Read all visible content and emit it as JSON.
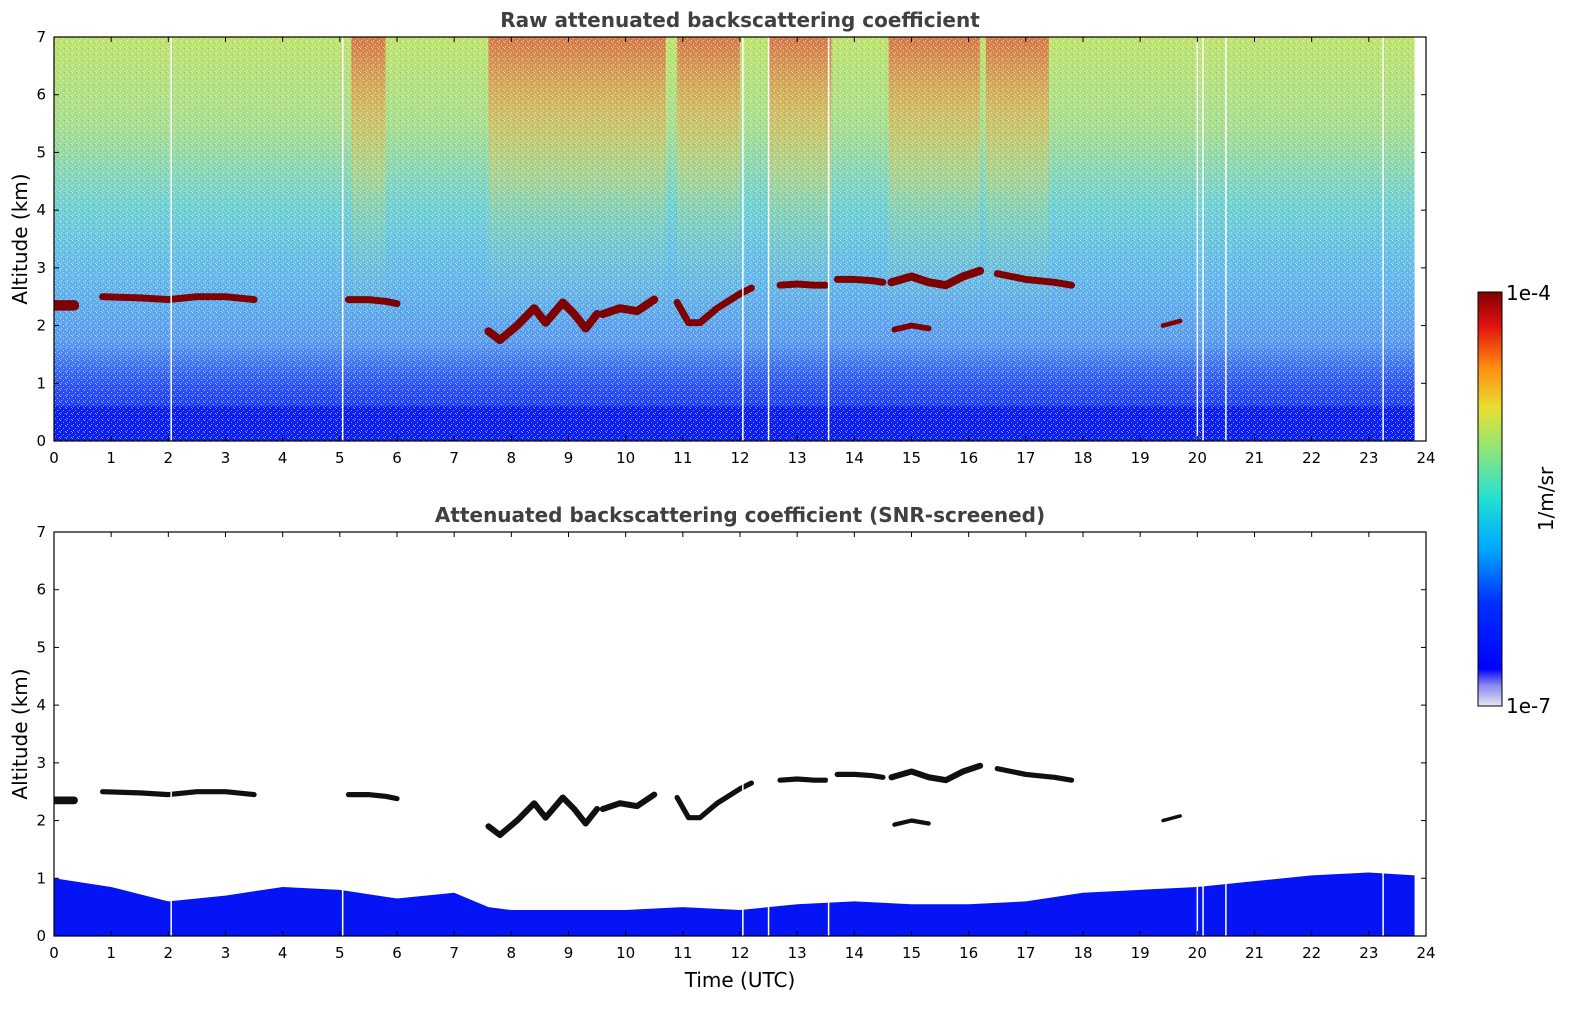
{
  "chart_data": [
    {
      "type": "heatmap",
      "title": "Raw attenuated backscattering coefficient",
      "xlabel": "",
      "ylabel": "Altitude (km)",
      "xlim": [
        0,
        24
      ],
      "ylim": [
        0,
        7
      ],
      "xticks": [
        "0",
        "1",
        "2",
        "3",
        "4",
        "5",
        "6",
        "7",
        "8",
        "9",
        "10",
        "11",
        "12",
        "13",
        "14",
        "15",
        "16",
        "17",
        "18",
        "19",
        "20",
        "21",
        "22",
        "23",
        "24"
      ],
      "yticks": [
        "0",
        "1",
        "2",
        "3",
        "4",
        "5",
        "6",
        "7"
      ],
      "data_end_time": 23.8,
      "surface_layer_top_km": 0.6,
      "noise_strong_intervals_utc": [
        [
          7.6,
          10.7
        ],
        [
          10.9,
          12.0
        ],
        [
          12.5,
          13.6
        ],
        [
          14.6,
          16.2
        ],
        [
          16.3,
          17.4
        ],
        [
          5.2,
          5.8
        ]
      ],
      "cloud_layers": [
        {
          "x": [
            0.0,
            0.35
          ],
          "alt_km": [
            2.35,
            2.35
          ],
          "thickness_km": 0.18
        },
        {
          "x": [
            0.85,
            1.5,
            2.0,
            2.5,
            3.0,
            3.5
          ],
          "alt_km": [
            2.5,
            2.48,
            2.45,
            2.5,
            2.5,
            2.45
          ],
          "thickness_km": 0.12
        },
        {
          "x": [
            5.15,
            5.5,
            5.8,
            6.0
          ],
          "alt_km": [
            2.45,
            2.45,
            2.42,
            2.38
          ],
          "thickness_km": 0.12
        },
        {
          "x": [
            7.6,
            7.8,
            8.1,
            8.4,
            8.6,
            8.9,
            9.1,
            9.3,
            9.5
          ],
          "alt_km": [
            1.9,
            1.75,
            2.0,
            2.3,
            2.05,
            2.4,
            2.2,
            1.95,
            2.2
          ],
          "thickness_km": 0.14
        },
        {
          "x": [
            9.6,
            9.9,
            10.2,
            10.5
          ],
          "alt_km": [
            2.2,
            2.3,
            2.25,
            2.45
          ],
          "thickness_km": 0.14
        },
        {
          "x": [
            10.9,
            11.1,
            11.3,
            11.6,
            12.0,
            12.2
          ],
          "alt_km": [
            2.4,
            2.05,
            2.05,
            2.3,
            2.55,
            2.65
          ],
          "thickness_km": 0.12
        },
        {
          "x": [
            12.7,
            13.0,
            13.3,
            13.5
          ],
          "alt_km": [
            2.7,
            2.72,
            2.7,
            2.7
          ],
          "thickness_km": 0.12
        },
        {
          "x": [
            13.7,
            14.0,
            14.3,
            14.5
          ],
          "alt_km": [
            2.8,
            2.8,
            2.78,
            2.75
          ],
          "thickness_km": 0.12
        },
        {
          "x": [
            14.65,
            15.0,
            15.3,
            15.6,
            15.9,
            16.2
          ],
          "alt_km": [
            2.75,
            2.85,
            2.75,
            2.7,
            2.85,
            2.95
          ],
          "thickness_km": 0.14
        },
        {
          "x": [
            16.5,
            17.0,
            17.5,
            17.8
          ],
          "alt_km": [
            2.9,
            2.8,
            2.75,
            2.7
          ],
          "thickness_km": 0.12
        },
        {
          "x": [
            14.7,
            15.0,
            15.3
          ],
          "alt_km": [
            1.93,
            2.0,
            1.95
          ],
          "thickness_km": 0.1
        },
        {
          "x": [
            19.4,
            19.7
          ],
          "alt_km": [
            2.0,
            2.08
          ],
          "thickness_km": 0.08
        }
      ]
    },
    {
      "type": "heatmap",
      "title": "Attenuated backscattering coefficient (SNR-screened)",
      "xlabel": "Time (UTC)",
      "ylabel": "Altitude (km)",
      "xlim": [
        0,
        24
      ],
      "ylim": [
        0,
        7
      ],
      "xticks": [
        "0",
        "1",
        "2",
        "3",
        "4",
        "5",
        "6",
        "7",
        "8",
        "9",
        "10",
        "11",
        "12",
        "13",
        "14",
        "15",
        "16",
        "17",
        "18",
        "19",
        "20",
        "21",
        "22",
        "23",
        "24"
      ],
      "yticks": [
        "0",
        "1",
        "2",
        "3",
        "4",
        "5",
        "6",
        "7"
      ],
      "boundary_layer_top_km": [
        [
          0,
          1.0
        ],
        [
          1,
          0.85
        ],
        [
          2,
          0.6
        ],
        [
          3,
          0.7
        ],
        [
          4,
          0.85
        ],
        [
          5,
          0.8
        ],
        [
          6,
          0.65
        ],
        [
          7,
          0.75
        ],
        [
          7.6,
          0.5
        ],
        [
          8,
          0.45
        ],
        [
          9,
          0.45
        ],
        [
          10,
          0.45
        ],
        [
          11,
          0.5
        ],
        [
          12,
          0.45
        ],
        [
          13,
          0.55
        ],
        [
          14,
          0.6
        ],
        [
          15,
          0.55
        ],
        [
          16,
          0.55
        ],
        [
          17,
          0.6
        ],
        [
          18,
          0.75
        ],
        [
          19,
          0.8
        ],
        [
          20,
          0.85
        ],
        [
          21,
          0.95
        ],
        [
          22,
          1.05
        ],
        [
          23,
          1.1
        ],
        [
          23.8,
          1.05
        ]
      ]
    }
  ],
  "colorbar": {
    "label": "1/m/sr",
    "max_label": "1e-4",
    "min_label": "1e-7",
    "colormap": "jet"
  },
  "colors": {
    "axis": "#000000",
    "title": "#404040",
    "cloud_core": "#7f0000",
    "screened_cloud": "#101010",
    "surface": "#0010ff"
  }
}
